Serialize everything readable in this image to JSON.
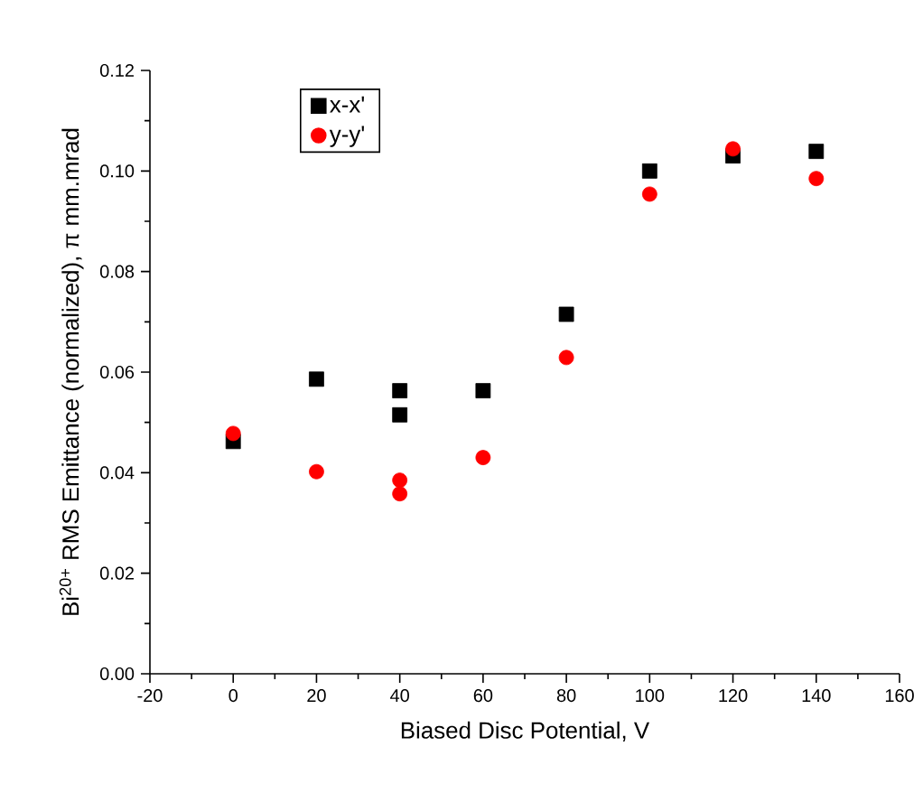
{
  "chart_data": {
    "type": "scatter",
    "xlabel": "Biased Disc Potential, V",
    "ylabel": "Bi$^{20+}$ RMS Emittance (normalized), π mm.mrad",
    "xlim": [
      -20,
      160
    ],
    "xticks": [
      -20,
      0,
      20,
      40,
      60,
      80,
      100,
      120,
      140,
      160
    ],
    "ylim": [
      0,
      0.12
    ],
    "yticks": [
      {
        "value": 0,
        "label": "0.00"
      },
      {
        "value": 0.02,
        "label": "0.02"
      },
      {
        "value": 0.04,
        "label": "0.04"
      },
      {
        "value": 0.06,
        "label": "0.06"
      },
      {
        "value": 0.08,
        "label": "0.08"
      },
      {
        "value": 0.1,
        "label": "0.10"
      },
      {
        "value": 0.12,
        "label": "0.12"
      }
    ],
    "legend": "top left",
    "grid": false,
    "series": [
      {
        "name": "x-x'",
        "color": "#000000",
        "marker": "square",
        "x": [
          0,
          20,
          40,
          40,
          60,
          80,
          100,
          120,
          140
        ],
        "values": [
          0.0462,
          0.0586,
          0.0563,
          0.0515,
          0.0563,
          0.0715,
          0.1,
          0.103,
          0.1039
        ]
      },
      {
        "name": "y-y'",
        "color": "#ff0000",
        "marker": "circle",
        "x": [
          0,
          20,
          40,
          40,
          60,
          80,
          100,
          120,
          140
        ],
        "values": [
          0.0478,
          0.0402,
          0.0385,
          0.0358,
          0.043,
          0.0629,
          0.0954,
          0.1044,
          0.0985
        ]
      }
    ]
  }
}
